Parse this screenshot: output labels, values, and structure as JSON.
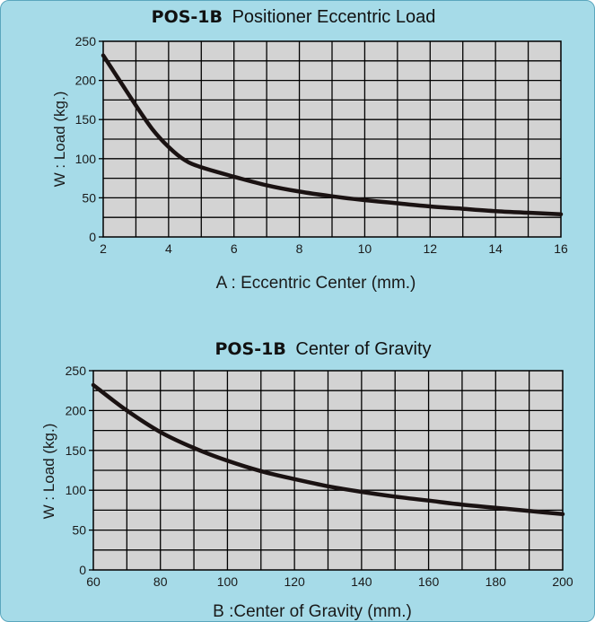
{
  "chart_data": [
    {
      "type": "line",
      "title_bold": "POS-1B",
      "title_rest": "Positioner Eccentric Load",
      "xlabel": "A : Eccentric Center (mm.)",
      "ylabel": "W : Load (kg.)",
      "xlim": [
        2,
        16
      ],
      "ylim": [
        0,
        250
      ],
      "x_ticks": [
        2,
        4,
        6,
        8,
        10,
        12,
        14,
        16
      ],
      "y_ticks": [
        0,
        50,
        100,
        150,
        200,
        250
      ],
      "grid": true,
      "series": [
        {
          "x": [
            2,
            2.5,
            3,
            3.5,
            4,
            4.5,
            5,
            6,
            7,
            8,
            9,
            10,
            11,
            12,
            13,
            14,
            15,
            16
          ],
          "y": [
            232,
            200,
            168,
            138,
            115,
            98,
            89,
            77,
            66,
            58,
            52,
            47,
            43,
            39,
            36,
            33,
            31,
            29
          ]
        }
      ]
    },
    {
      "type": "line",
      "title_bold": "POS-1B",
      "title_rest": "Center of Gravity",
      "xlabel": "B :Center of Gravity (mm.)",
      "ylabel": "W : Load (kg.)",
      "xlim": [
        60,
        200
      ],
      "ylim": [
        0,
        250
      ],
      "x_ticks": [
        60,
        80,
        100,
        120,
        140,
        160,
        180,
        200
      ],
      "y_ticks": [
        0,
        50,
        100,
        150,
        200,
        250
      ],
      "grid": true,
      "series": [
        {
          "x": [
            60,
            70,
            80,
            90,
            100,
            110,
            120,
            130,
            140,
            150,
            160,
            170,
            180,
            190,
            200
          ],
          "y": [
            232,
            200,
            173,
            153,
            137,
            124,
            114,
            105,
            98,
            92,
            87,
            82,
            78,
            74,
            70
          ]
        }
      ]
    }
  ],
  "colors": {
    "panel_background": "#a6dbe8",
    "plot_background": "#d3d3d3",
    "grid_line": "#000000",
    "curve": "#1a1212"
  }
}
